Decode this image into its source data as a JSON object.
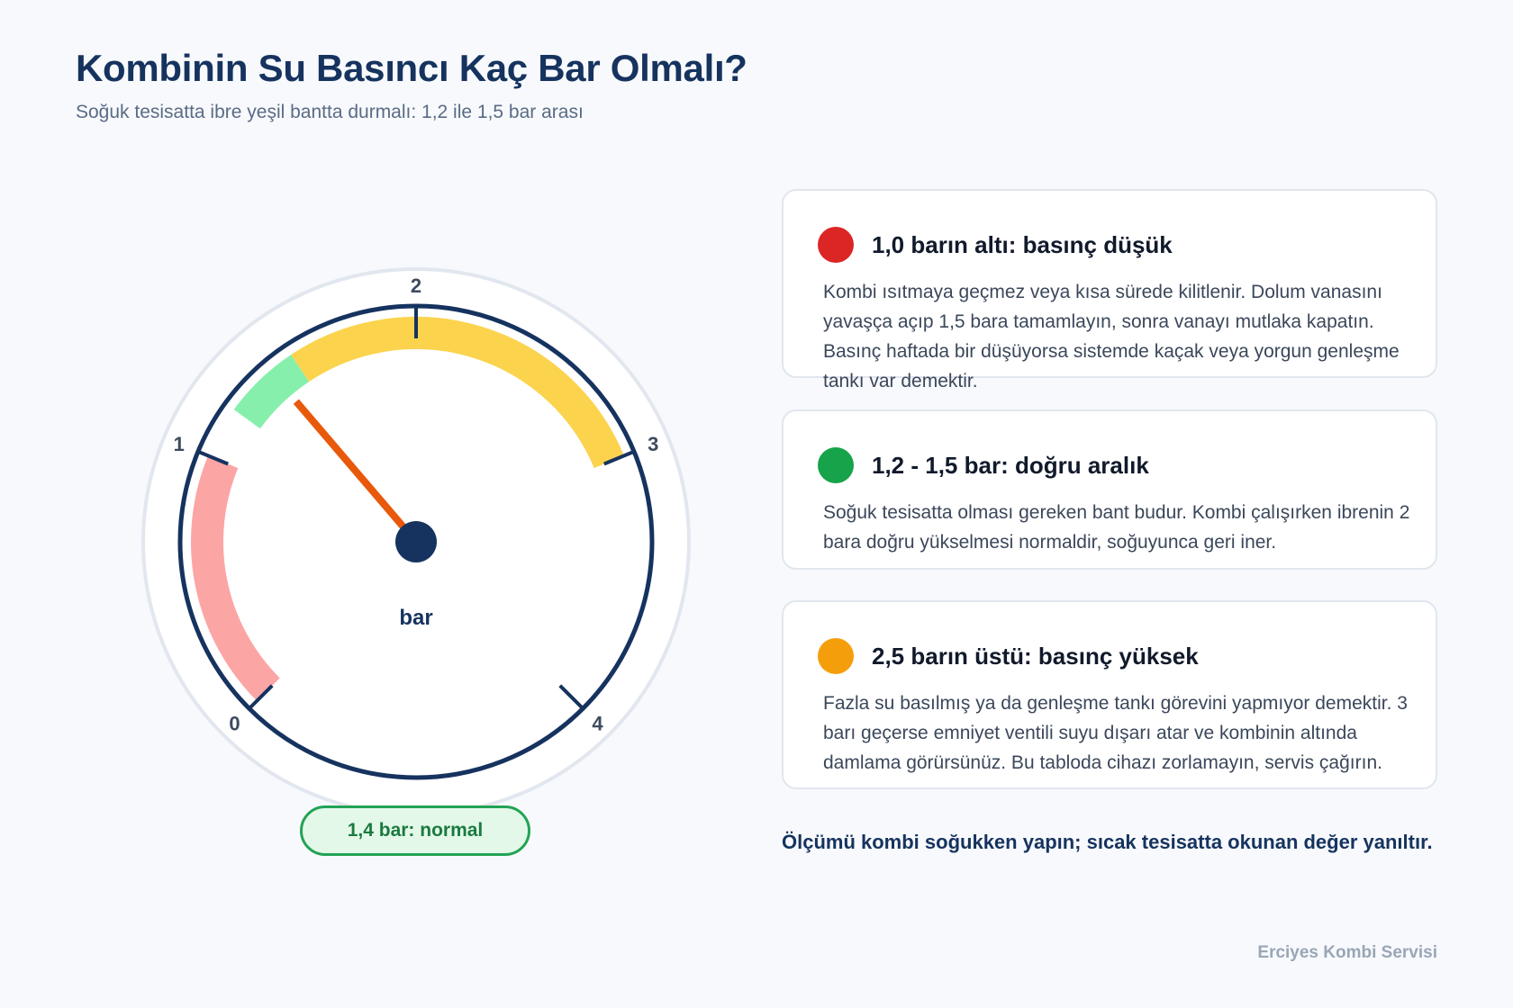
{
  "header": {
    "title": "Kombinin Su Basıncı Kaç Bar Olmalı?",
    "subtitle": "Soğuk tesisatta ibre yeşil bantta durmalı: 1,2 ile 1,5 bar arası"
  },
  "gauge": {
    "min": 0,
    "max": 4,
    "value": 1.4,
    "unit": "bar",
    "tick_labels": [
      "0",
      "1",
      "2",
      "3",
      "4"
    ],
    "bands": [
      {
        "from": 0,
        "to": 1.0,
        "color": "#fca5a5"
      },
      {
        "from": 1.2,
        "to": 1.5,
        "color": "#86efac"
      },
      {
        "from": 1.5,
        "to": 3.0,
        "color": "#fcd34d"
      }
    ],
    "needle_color": "#e8590c",
    "status_label": "1,4 bar: normal"
  },
  "cards": [
    {
      "title": "1,0 barın altı: basınç düşük",
      "color": "#dc2626",
      "body": "Kombi ısıtmaya geçmez veya kısa sürede kilitlenir. Dolum vanasını yavaşça açıp 1,5 bara tamamlayın, sonra vanayı mutlaka kapatın. Basınç haftada bir düşüyorsa sistemde kaçak veya yorgun genleşme tankı var demektir."
    },
    {
      "title": "1,2 - 1,5 bar: doğru aralık",
      "color": "#16a34a",
      "body": "Soğuk tesisatta olması gereken bant budur. Kombi çalışırken ibrenin 2 bara doğru yükselmesi normaldir, soğuyunca geri iner."
    },
    {
      "title": "2,5 barın üstü: basınç yüksek",
      "color": "#f59e0b",
      "body": "Fazla su basılmış ya da genleşme tankı görevini yapmıyor demektir. 3 barı geçerse emniyet ventili suyu dışarı atar ve kombinin altında damlama görürsünüz. Bu tabloda cihazı zorlamayın, servis çağırın."
    }
  ],
  "note": "Ölçümü kombi soğukken yapın; sıcak tesisatta okunan değer yanıltır.",
  "footer": "Erciyes Kombi Servisi"
}
